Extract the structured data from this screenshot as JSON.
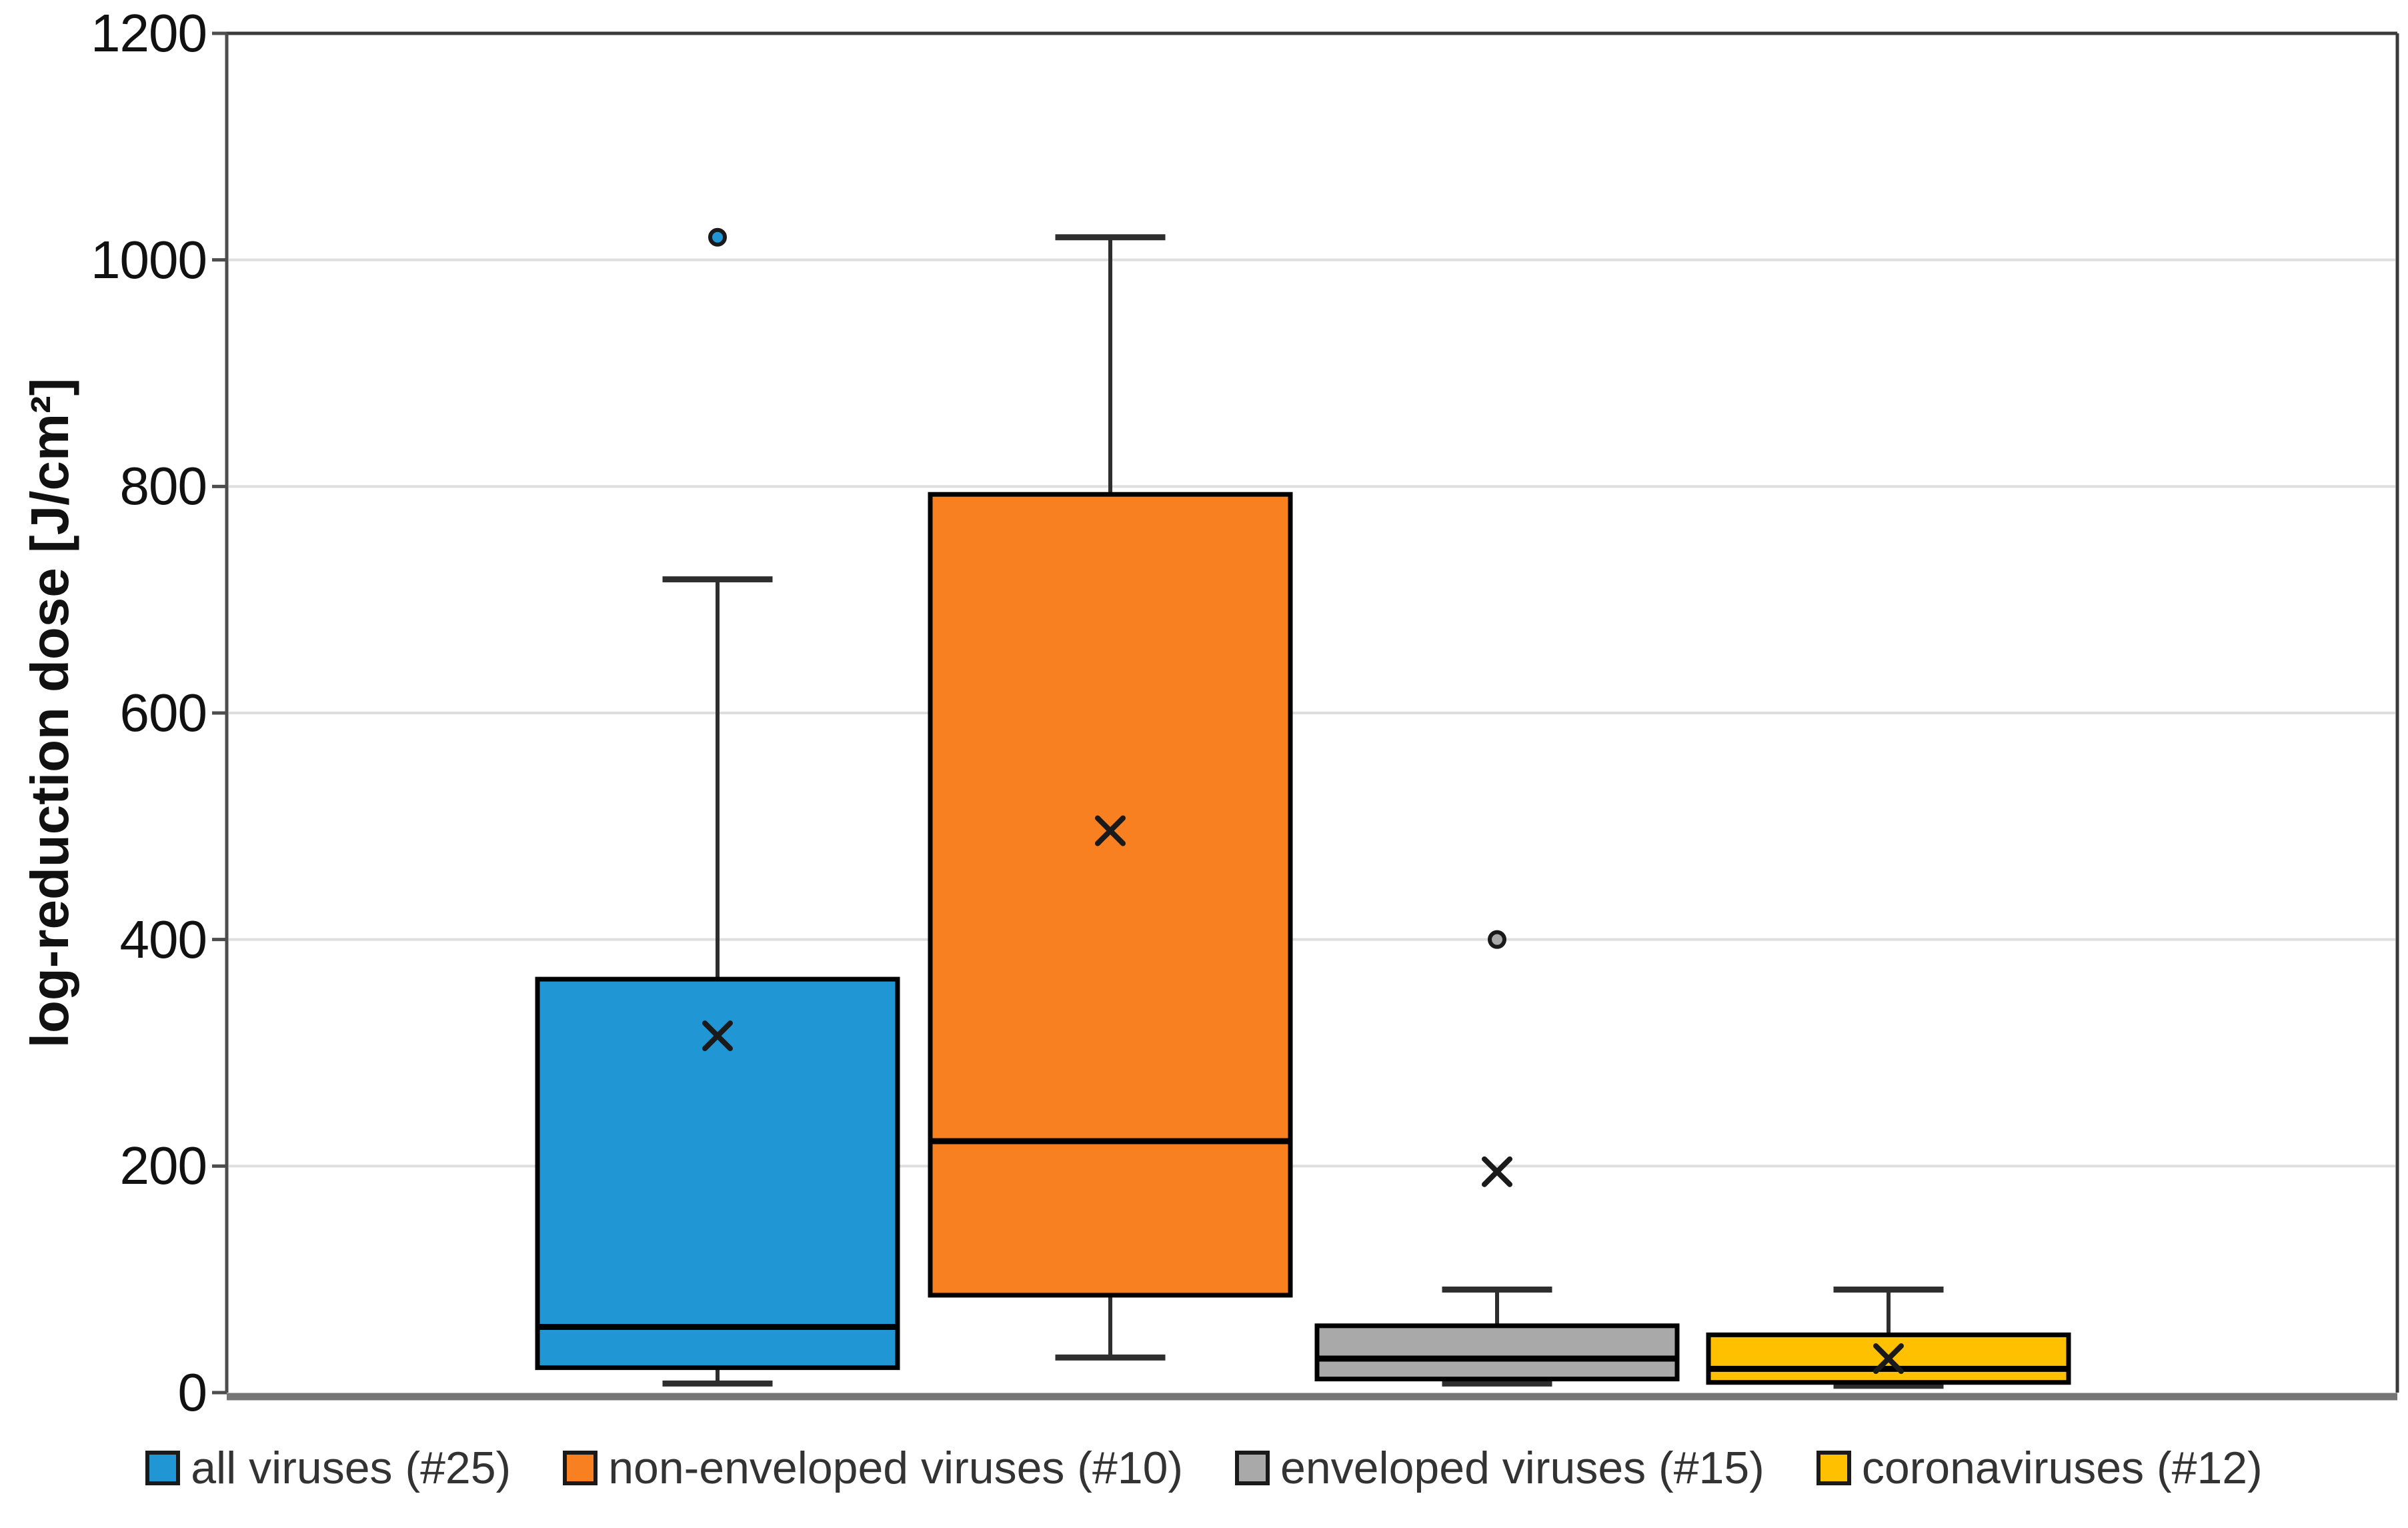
{
  "figure_type": "boxplot-figure",
  "y_axis": {
    "title": "log-reduction dose [J/cm²]",
    "min": 0,
    "max": 1200,
    "step": 200,
    "tick_labels": [
      "0",
      "200",
      "400",
      "600",
      "800",
      "1000",
      "1200"
    ]
  },
  "colors": {
    "blue": "#2097D4",
    "orange": "#F88020",
    "gray": "#A9A9A9",
    "yellow": "#FFC000",
    "box_border": "#000000",
    "whisker": "#2e2e2e",
    "gridline": "#dedede",
    "frame": "#3a3a3a",
    "bottom_axis": "#757575",
    "marker": "#1a1a1a"
  },
  "chart_data": {
    "type": "boxplot",
    "title": "",
    "xlabel": "",
    "ylabel": "log-reduction dose [J/cm²]",
    "ylim": [
      0,
      1200
    ],
    "grid": true,
    "legend_position": "bottom",
    "series": [
      {
        "name": "all viruses (#25)",
        "count": 25,
        "color": "#2097D4",
        "min": 8,
        "q1": 22,
        "median": 58,
        "q3": 365,
        "max": 718,
        "mean": 315,
        "outliers": [
          1020
        ]
      },
      {
        "name": "non-enveloped viruses (#10)",
        "count": 10,
        "color": "#F88020",
        "min": 31,
        "q1": 86,
        "median": 222,
        "q3": 793,
        "max": 1020,
        "mean": 496,
        "outliers": []
      },
      {
        "name": "enveloped viruses (#15)",
        "count": 15,
        "color": "#A9A9A9",
        "min": 8,
        "q1": 12,
        "median": 30,
        "q3": 59,
        "max": 91,
        "mean": 195,
        "outliers": [
          400
        ]
      },
      {
        "name": "coronaviruses (#12)",
        "count": 12,
        "color": "#FFC000",
        "min": 6,
        "q1": 9,
        "median": 21,
        "q3": 51,
        "max": 91,
        "mean": 30,
        "outliers": []
      }
    ]
  }
}
